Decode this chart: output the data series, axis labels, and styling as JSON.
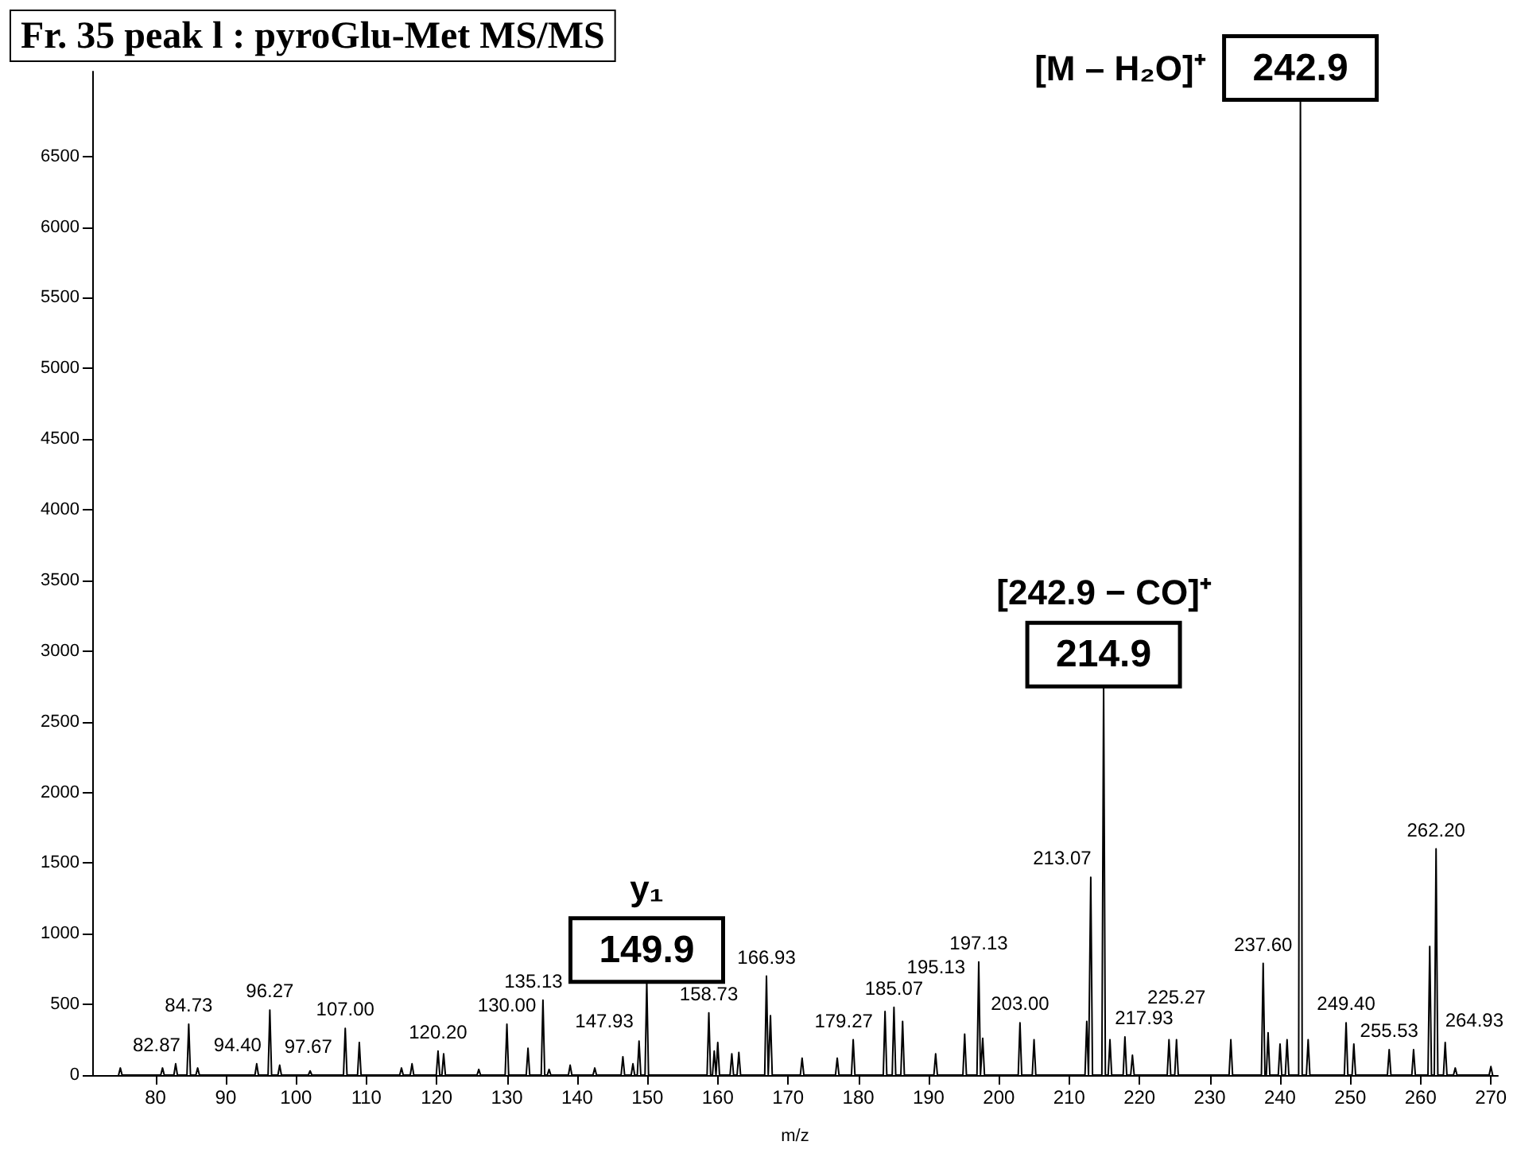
{
  "chart_data": {
    "type": "line",
    "title": "Fr. 35 peak l : pyroGlu-Met MS/MS",
    "xlabel": "m/z",
    "xlim": [
      71,
      271
    ],
    "xticks": [
      80,
      90,
      100,
      110,
      120,
      130,
      140,
      150,
      160,
      170,
      180,
      190,
      200,
      210,
      220,
      230,
      240,
      250,
      260,
      270
    ],
    "ylim": [
      0,
      7100
    ],
    "yticks": [
      0,
      500,
      1000,
      1500,
      2000,
      2500,
      3000,
      3500,
      4000,
      4500,
      5000,
      5500,
      6000,
      6500
    ],
    "grid": false,
    "marker": "none",
    "line_style": "solid",
    "series": [
      {
        "color": "#000000",
        "x": [
          74.75,
          75,
          75.25,
          80.75,
          81,
          81.25,
          82.62,
          82.87,
          83.12,
          84.48,
          84.73,
          84.98,
          85.75,
          86,
          86.25,
          94.15,
          94.4,
          94.65,
          96.02,
          96.27,
          96.52,
          97.42,
          97.67,
          97.92,
          101.75,
          102,
          102.25,
          106.75,
          107,
          107.25,
          108.75,
          109,
          109.25,
          114.75,
          115,
          115.25,
          116.25,
          116.5,
          116.75,
          119.95,
          120.2,
          120.45,
          120.75,
          121,
          121.25,
          125.75,
          126,
          126.25,
          129.75,
          130,
          130.25,
          132.75,
          133,
          133.25,
          134.88,
          135.13,
          135.38,
          135.75,
          136,
          136.25,
          138.75,
          139,
          139.25,
          142.25,
          142.5,
          142.75,
          146.25,
          146.5,
          146.75,
          147.68,
          147.93,
          148.18,
          148.55,
          148.8,
          149.05,
          149.65,
          149.9,
          150.15,
          158.48,
          158.73,
          158.98,
          159.25,
          159.5,
          159.75,
          159.75,
          160,
          160.25,
          161.75,
          162,
          162.25,
          162.75,
          163,
          163.25,
          166.68,
          166.93,
          167.18,
          167.25,
          167.5,
          167.75,
          171.75,
          172,
          172.25,
          176.75,
          177,
          177.25,
          179.02,
          179.27,
          179.52,
          183.55,
          183.8,
          184.05,
          184.82,
          185.07,
          185.32,
          186.05,
          186.3,
          186.55,
          190.75,
          191,
          191.25,
          194.88,
          195.13,
          195.38,
          196.88,
          197.13,
          197.38,
          197.45,
          197.7,
          197.95,
          202.75,
          203,
          203.25,
          204.75,
          205,
          205.25,
          212.25,
          212.5,
          212.75,
          212.82,
          213.07,
          213.32,
          214.65,
          214.9,
          215.15,
          215.55,
          215.8,
          216.05,
          217.68,
          217.93,
          218.18,
          218.75,
          219,
          219.25,
          223.95,
          224.2,
          224.45,
          225.02,
          225.27,
          225.52,
          232.75,
          233,
          233.25,
          237.35,
          237.6,
          237.85,
          238.05,
          238.3,
          238.55,
          239.75,
          240,
          240.25,
          240.75,
          241,
          241.25,
          242.65,
          242.9,
          243.15,
          243.75,
          244,
          244.25,
          249.15,
          249.4,
          249.65,
          250.25,
          250.5,
          250.75,
          255.28,
          255.53,
          255.78,
          258.75,
          259,
          259.25,
          261.05,
          261.3,
          261.55,
          261.95,
          262.2,
          262.45,
          263.25,
          263.5,
          263.75,
          264.68,
          264.93,
          265.18,
          269.75,
          270,
          270.25
        ],
        "values": [
          0,
          50,
          0,
          0,
          50,
          0,
          0,
          80,
          0,
          0,
          360,
          0,
          0,
          50,
          0,
          0,
          80,
          0,
          0,
          460,
          0,
          0,
          70,
          0,
          0,
          30,
          0,
          0,
          330,
          0,
          0,
          230,
          0,
          0,
          50,
          0,
          0,
          80,
          0,
          0,
          170,
          0,
          0,
          150,
          0,
          0,
          40,
          0,
          0,
          360,
          0,
          0,
          190,
          0,
          0,
          530,
          0,
          0,
          40,
          0,
          0,
          70,
          0,
          0,
          50,
          0,
          0,
          130,
          0,
          0,
          80,
          0,
          0,
          240,
          0,
          0,
          660,
          0,
          0,
          440,
          0,
          0,
          170,
          0,
          0,
          230,
          0,
          0,
          150,
          0,
          0,
          160,
          0,
          0,
          700,
          0,
          0,
          420,
          0,
          0,
          120,
          0,
          0,
          120,
          0,
          0,
          250,
          0,
          0,
          450,
          0,
          0,
          480,
          0,
          0,
          380,
          0,
          0,
          150,
          0,
          0,
          290,
          0,
          0,
          800,
          0,
          0,
          260,
          0,
          0,
          370,
          0,
          0,
          250,
          0,
          0,
          380,
          0,
          0,
          1400,
          0,
          0,
          2750,
          0,
          0,
          250,
          0,
          0,
          270,
          0,
          0,
          140,
          0,
          0,
          250,
          0,
          0,
          250,
          0,
          0,
          250,
          0,
          0,
          790,
          0,
          0,
          300,
          0,
          0,
          220,
          0,
          0,
          250,
          0,
          0,
          6900,
          0,
          0,
          250,
          0,
          0,
          370,
          0,
          0,
          220,
          0,
          0,
          180,
          0,
          0,
          180,
          0,
          0,
          910,
          0,
          0,
          1600,
          0,
          0,
          230,
          0,
          0,
          50,
          0,
          0,
          60,
          0
        ]
      }
    ],
    "annotations": [
      {
        "text": "242.9",
        "x": 242.9,
        "y": 6900
      },
      {
        "text": "[M – H₂O]⁺",
        "x": 242.9,
        "y": 6900
      },
      {
        "text": "214.9",
        "x": 214.9,
        "y": 2750
      },
      {
        "text": "[242.9 − CO]⁺",
        "x": 214.9,
        "y": 2750
      },
      {
        "text": "149.9",
        "x": 149.9,
        "y": 660
      },
      {
        "text": "y₁",
        "x": 149.9,
        "y": 660
      },
      {
        "text": "82.87",
        "x": 82.87,
        "y": 80
      },
      {
        "text": "84.73",
        "x": 84.73,
        "y": 360
      },
      {
        "text": "94.40",
        "x": 94.4,
        "y": 80
      },
      {
        "text": "96.27",
        "x": 96.27,
        "y": 460
      },
      {
        "text": "97.67",
        "x": 97.67,
        "y": 70
      },
      {
        "text": "107.00",
        "x": 107,
        "y": 330
      },
      {
        "text": "120.20",
        "x": 120.2,
        "y": 170
      },
      {
        "text": "130.00",
        "x": 130,
        "y": 360
      },
      {
        "text": "135.13",
        "x": 135.13,
        "y": 530
      },
      {
        "text": "147.93",
        "x": 147.93,
        "y": 80
      },
      {
        "text": "158.73",
        "x": 158.73,
        "y": 440
      },
      {
        "text": "166.93",
        "x": 166.93,
        "y": 700
      },
      {
        "text": "179.27",
        "x": 179.27,
        "y": 250
      },
      {
        "text": "185.07",
        "x": 185.07,
        "y": 480
      },
      {
        "text": "195.13",
        "x": 195.13,
        "y": 290
      },
      {
        "text": "197.13",
        "x": 197.13,
        "y": 800
      },
      {
        "text": "203.00",
        "x": 203,
        "y": 370
      },
      {
        "text": "213.07",
        "x": 213.07,
        "y": 1400
      },
      {
        "text": "217.93",
        "x": 217.93,
        "y": 270
      },
      {
        "text": "225.27",
        "x": 225.27,
        "y": 250
      },
      {
        "text": "237.60",
        "x": 237.6,
        "y": 790
      },
      {
        "text": "249.40",
        "x": 249.4,
        "y": 370
      },
      {
        "text": "255.53",
        "x": 255.53,
        "y": 180
      },
      {
        "text": "262.20",
        "x": 262.2,
        "y": 1600
      },
      {
        "text": "264.93",
        "x": 264.93,
        "y": 50
      }
    ]
  }
}
